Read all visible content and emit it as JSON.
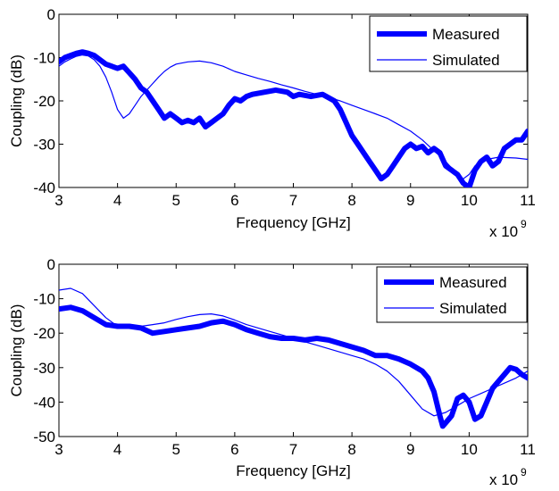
{
  "colors": {
    "series": "#0000FF",
    "axes": "#000000",
    "background": "#FFFFFF"
  },
  "chart_data": [
    {
      "type": "line",
      "title": "",
      "xlabel": "Frequency [GHz]",
      "ylabel": "Coupling (dB)",
      "xlim": [
        3,
        11
      ],
      "ylim": [
        -40,
        0
      ],
      "x_ticks": [
        "3",
        "4",
        "5",
        "6",
        "7",
        "8",
        "9",
        "10",
        "11"
      ],
      "y_ticks": [
        "0",
        "-10",
        "-20",
        "-30",
        "-40"
      ],
      "x_multiplier": "x 10",
      "x_multiplier_exp": "9",
      "grid": false,
      "legend_position": "top-right",
      "series": [
        {
          "name": "Measured",
          "style": "thick",
          "points": [
            [
              3.0,
              -11
            ],
            [
              3.1,
              -10
            ],
            [
              3.2,
              -9.5
            ],
            [
              3.3,
              -9
            ],
            [
              3.4,
              -8.7
            ],
            [
              3.5,
              -9
            ],
            [
              3.6,
              -9.5
            ],
            [
              3.7,
              -10.5
            ],
            [
              3.8,
              -11.5
            ],
            [
              3.9,
              -12
            ],
            [
              4.0,
              -12.5
            ],
            [
              4.1,
              -12
            ],
            [
              4.2,
              -13.5
            ],
            [
              4.3,
              -15
            ],
            [
              4.4,
              -17
            ],
            [
              4.5,
              -18
            ],
            [
              4.6,
              -20
            ],
            [
              4.7,
              -22
            ],
            [
              4.8,
              -24
            ],
            [
              4.9,
              -23
            ],
            [
              5.0,
              -24
            ],
            [
              5.1,
              -25
            ],
            [
              5.2,
              -24.5
            ],
            [
              5.3,
              -25
            ],
            [
              5.4,
              -24
            ],
            [
              5.5,
              -26
            ],
            [
              5.6,
              -25
            ],
            [
              5.7,
              -24
            ],
            [
              5.8,
              -23
            ],
            [
              5.9,
              -21
            ],
            [
              6.0,
              -19.5
            ],
            [
              6.1,
              -20
            ],
            [
              6.2,
              -19
            ],
            [
              6.3,
              -18.5
            ],
            [
              6.5,
              -18
            ],
            [
              6.7,
              -17.5
            ],
            [
              6.9,
              -18
            ],
            [
              7.0,
              -19
            ],
            [
              7.1,
              -18.5
            ],
            [
              7.3,
              -19
            ],
            [
              7.5,
              -18.5
            ],
            [
              7.7,
              -20
            ],
            [
              7.8,
              -22
            ],
            [
              7.9,
              -25
            ],
            [
              8.0,
              -28
            ],
            [
              8.1,
              -30
            ],
            [
              8.2,
              -32
            ],
            [
              8.3,
              -34
            ],
            [
              8.4,
              -36
            ],
            [
              8.5,
              -38
            ],
            [
              8.6,
              -37
            ],
            [
              8.7,
              -35
            ],
            [
              8.8,
              -33
            ],
            [
              8.9,
              -31
            ],
            [
              9.0,
              -30
            ],
            [
              9.1,
              -31
            ],
            [
              9.2,
              -30.5
            ],
            [
              9.3,
              -32
            ],
            [
              9.4,
              -31
            ],
            [
              9.5,
              -32
            ],
            [
              9.6,
              -35
            ],
            [
              9.7,
              -36
            ],
            [
              9.8,
              -37
            ],
            [
              9.9,
              -39
            ],
            [
              10.0,
              -40
            ],
            [
              10.1,
              -36
            ],
            [
              10.2,
              -34
            ],
            [
              10.3,
              -33
            ],
            [
              10.4,
              -35
            ],
            [
              10.5,
              -34
            ],
            [
              10.6,
              -31
            ],
            [
              10.7,
              -30
            ],
            [
              10.8,
              -29
            ],
            [
              10.9,
              -29
            ],
            [
              11.0,
              -27
            ]
          ]
        },
        {
          "name": "Simulated",
          "style": "thin",
          "points": [
            [
              3.0,
              -12
            ],
            [
              3.1,
              -11
            ],
            [
              3.2,
              -10.3
            ],
            [
              3.3,
              -9.7
            ],
            [
              3.4,
              -9.4
            ],
            [
              3.5,
              -9.6
            ],
            [
              3.6,
              -10.5
            ],
            [
              3.7,
              -12
            ],
            [
              3.8,
              -14.5
            ],
            [
              3.9,
              -18
            ],
            [
              4.0,
              -22
            ],
            [
              4.1,
              -24
            ],
            [
              4.2,
              -23
            ],
            [
              4.3,
              -21
            ],
            [
              4.4,
              -19
            ],
            [
              4.5,
              -17.5
            ],
            [
              4.6,
              -16
            ],
            [
              4.7,
              -14.5
            ],
            [
              4.8,
              -13.2
            ],
            [
              4.9,
              -12.2
            ],
            [
              5.0,
              -11.5
            ],
            [
              5.2,
              -11
            ],
            [
              5.4,
              -10.8
            ],
            [
              5.6,
              -11.2
            ],
            [
              5.8,
              -12
            ],
            [
              6.0,
              -13.2
            ],
            [
              6.2,
              -14
            ],
            [
              6.4,
              -14.8
            ],
            [
              6.6,
              -15.5
            ],
            [
              6.8,
              -16.3
            ],
            [
              7.0,
              -17
            ],
            [
              7.2,
              -17.8
            ],
            [
              7.4,
              -18.5
            ],
            [
              7.6,
              -19.2
            ],
            [
              7.8,
              -20
            ],
            [
              8.0,
              -21
            ],
            [
              8.2,
              -22
            ],
            [
              8.4,
              -23
            ],
            [
              8.6,
              -24
            ],
            [
              8.8,
              -25.5
            ],
            [
              9.0,
              -27
            ],
            [
              9.2,
              -29
            ],
            [
              9.4,
              -31.5
            ],
            [
              9.6,
              -34
            ],
            [
              9.8,
              -37
            ],
            [
              9.9,
              -38
            ],
            [
              10.0,
              -37
            ],
            [
              10.1,
              -35
            ],
            [
              10.3,
              -33.5
            ],
            [
              10.5,
              -33
            ],
            [
              10.8,
              -33.2
            ],
            [
              11.0,
              -33.5
            ]
          ]
        }
      ]
    },
    {
      "type": "line",
      "title": "",
      "xlabel": "Frequency [GHz]",
      "ylabel": "Coupling (dB)",
      "xlim": [
        3,
        11
      ],
      "ylim": [
        -50,
        0
      ],
      "x_ticks": [
        "3",
        "4",
        "5",
        "6",
        "7",
        "8",
        "9",
        "10",
        "11"
      ],
      "y_ticks": [
        "0",
        "-10",
        "-20",
        "-30",
        "-40",
        "-50"
      ],
      "x_multiplier": "x 10",
      "x_multiplier_exp": "9",
      "grid": false,
      "legend_position": "top-right",
      "series": [
        {
          "name": "Measured",
          "style": "thick",
          "points": [
            [
              3.0,
              -13
            ],
            [
              3.2,
              -12.5
            ],
            [
              3.4,
              -13.5
            ],
            [
              3.6,
              -15.5
            ],
            [
              3.8,
              -17.5
            ],
            [
              4.0,
              -18
            ],
            [
              4.2,
              -18
            ],
            [
              4.4,
              -18.5
            ],
            [
              4.6,
              -20
            ],
            [
              4.8,
              -19.5
            ],
            [
              5.0,
              -19
            ],
            [
              5.2,
              -18.5
            ],
            [
              5.4,
              -18
            ],
            [
              5.6,
              -17
            ],
            [
              5.8,
              -16.5
            ],
            [
              6.0,
              -17.5
            ],
            [
              6.2,
              -19
            ],
            [
              6.4,
              -20
            ],
            [
              6.6,
              -21
            ],
            [
              6.8,
              -21.5
            ],
            [
              7.0,
              -21.5
            ],
            [
              7.2,
              -22
            ],
            [
              7.4,
              -21.5
            ],
            [
              7.6,
              -22
            ],
            [
              7.8,
              -23
            ],
            [
              8.0,
              -24
            ],
            [
              8.2,
              -25
            ],
            [
              8.4,
              -26.5
            ],
            [
              8.6,
              -26.5
            ],
            [
              8.8,
              -27.5
            ],
            [
              9.0,
              -29
            ],
            [
              9.2,
              -31
            ],
            [
              9.3,
              -33
            ],
            [
              9.4,
              -37
            ],
            [
              9.5,
              -44
            ],
            [
              9.55,
              -47
            ],
            [
              9.6,
              -46
            ],
            [
              9.7,
              -44
            ],
            [
              9.8,
              -39
            ],
            [
              9.9,
              -38
            ],
            [
              10.0,
              -40
            ],
            [
              10.1,
              -45
            ],
            [
              10.2,
              -44
            ],
            [
              10.3,
              -40
            ],
            [
              10.4,
              -36
            ],
            [
              10.5,
              -34
            ],
            [
              10.6,
              -32
            ],
            [
              10.7,
              -30
            ],
            [
              10.8,
              -30.5
            ],
            [
              10.9,
              -32
            ],
            [
              11.0,
              -33
            ]
          ]
        },
        {
          "name": "Simulated",
          "style": "thin",
          "points": [
            [
              3.0,
              -7.5
            ],
            [
              3.2,
              -7
            ],
            [
              3.4,
              -8.5
            ],
            [
              3.6,
              -12
            ],
            [
              3.8,
              -15.5
            ],
            [
              4.0,
              -18
            ],
            [
              4.2,
              -18.5
            ],
            [
              4.4,
              -18
            ],
            [
              4.6,
              -17.5
            ],
            [
              4.8,
              -17
            ],
            [
              5.0,
              -16
            ],
            [
              5.2,
              -15.2
            ],
            [
              5.4,
              -14.6
            ],
            [
              5.6,
              -14.4
            ],
            [
              5.8,
              -15
            ],
            [
              6.0,
              -16.2
            ],
            [
              6.2,
              -17.5
            ],
            [
              6.4,
              -18.5
            ],
            [
              6.6,
              -19.5
            ],
            [
              6.8,
              -20.5
            ],
            [
              7.0,
              -21.5
            ],
            [
              7.2,
              -22.5
            ],
            [
              7.4,
              -23.5
            ],
            [
              7.6,
              -24.5
            ],
            [
              7.8,
              -25.5
            ],
            [
              8.0,
              -26.5
            ],
            [
              8.2,
              -27.5
            ],
            [
              8.4,
              -29
            ],
            [
              8.6,
              -31
            ],
            [
              8.8,
              -34
            ],
            [
              9.0,
              -38
            ],
            [
              9.2,
              -42
            ],
            [
              9.4,
              -44
            ],
            [
              9.6,
              -43
            ],
            [
              9.8,
              -41
            ],
            [
              10.0,
              -39
            ],
            [
              10.2,
              -37.5
            ],
            [
              10.4,
              -36
            ],
            [
              10.6,
              -34.5
            ],
            [
              10.8,
              -33
            ],
            [
              11.0,
              -31
            ]
          ]
        }
      ]
    }
  ]
}
